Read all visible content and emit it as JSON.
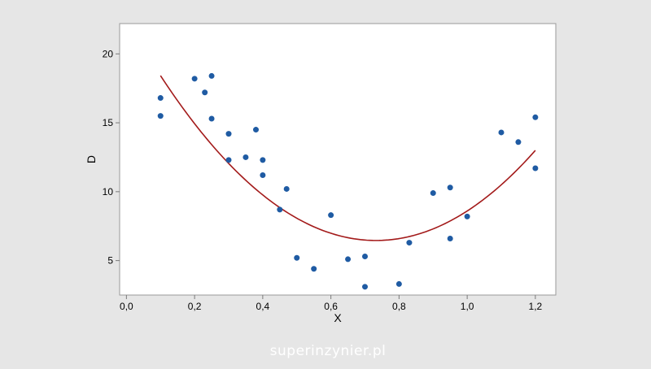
{
  "chart_data": {
    "type": "scatter",
    "xlabel": "X",
    "ylabel": "D",
    "xlim": [
      -0.02,
      1.26
    ],
    "ylim": [
      2.5,
      22.2
    ],
    "x_ticks": [
      0.0,
      0.2,
      0.4,
      0.6,
      0.8,
      1.0,
      1.2
    ],
    "x_tick_labels": [
      "0,0",
      "0,2",
      "0,4",
      "0,6",
      "0,8",
      "1,0",
      "1,2"
    ],
    "y_ticks": [
      5,
      10,
      15,
      20
    ],
    "y_tick_labels": [
      "5",
      "10",
      "15",
      "20"
    ],
    "grid": false,
    "points": {
      "color": "#1f5ba3",
      "x": [
        0.1,
        0.1,
        0.2,
        0.23,
        0.25,
        0.25,
        0.3,
        0.3,
        0.35,
        0.38,
        0.4,
        0.4,
        0.45,
        0.47,
        0.5,
        0.55,
        0.6,
        0.65,
        0.7,
        0.7,
        0.8,
        0.83,
        0.9,
        0.95,
        0.95,
        1.0,
        1.1,
        1.15,
        1.2,
        1.2
      ],
      "y": [
        16.8,
        15.5,
        18.2,
        17.2,
        18.4,
        15.3,
        14.2,
        12.3,
        12.5,
        14.5,
        12.3,
        11.2,
        8.7,
        10.2,
        5.2,
        4.4,
        8.3,
        5.1,
        5.3,
        3.1,
        3.3,
        6.3,
        9.9,
        10.3,
        6.6,
        8.2,
        14.3,
        13.6,
        15.4,
        11.7
      ]
    },
    "fit": {
      "type": "quadratic",
      "color": "#a31a1a",
      "x_range": [
        0.1,
        1.2
      ],
      "coefficients": {
        "a": 29.9,
        "b": -43.8,
        "c": 22.5
      }
    }
  },
  "watermark": "superinzynier.pl"
}
